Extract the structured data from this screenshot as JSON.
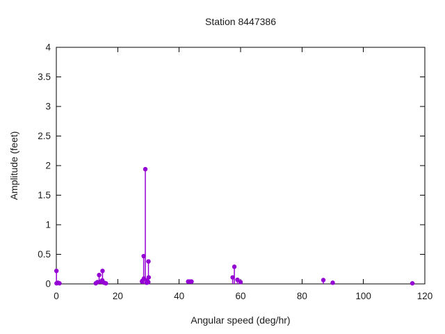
{
  "chart_data": {
    "type": "stem",
    "title": "Station 8447386",
    "xlabel": "Angular speed (deg/hr)",
    "ylabel": "Amplitude (feet)",
    "xlim": [
      0,
      120
    ],
    "ylim": [
      0,
      4
    ],
    "xticks": [
      0,
      20,
      40,
      60,
      80,
      100,
      120
    ],
    "yticks": [
      0,
      0.5,
      1,
      1.5,
      2,
      2.5,
      3,
      3.5,
      4
    ],
    "grid": false,
    "legend": "none",
    "marker_color": "#9400d3",
    "axis_color": "#000000",
    "text_color": "#1a1a1a",
    "points": [
      {
        "x": 0.04,
        "y": 0.22
      },
      {
        "x": 0.08,
        "y": 0.01
      },
      {
        "x": 0.54,
        "y": 0.02
      },
      {
        "x": 1.02,
        "y": 0.01
      },
      {
        "x": 12.85,
        "y": 0.01
      },
      {
        "x": 13.4,
        "y": 0.03
      },
      {
        "x": 13.94,
        "y": 0.15
      },
      {
        "x": 14.5,
        "y": 0.04
      },
      {
        "x": 14.96,
        "y": 0.06
      },
      {
        "x": 15.04,
        "y": 0.22
      },
      {
        "x": 15.59,
        "y": 0.02
      },
      {
        "x": 16.14,
        "y": 0.01
      },
      {
        "x": 27.9,
        "y": 0.04
      },
      {
        "x": 27.97,
        "y": 0.05
      },
      {
        "x": 28.44,
        "y": 0.47
      },
      {
        "x": 28.51,
        "y": 0.09
      },
      {
        "x": 28.98,
        "y": 1.94
      },
      {
        "x": 29.46,
        "y": 0.02
      },
      {
        "x": 29.53,
        "y": 0.06
      },
      {
        "x": 29.96,
        "y": 0.03
      },
      {
        "x": 30.0,
        "y": 0.38
      },
      {
        "x": 30.08,
        "y": 0.11
      },
      {
        "x": 42.93,
        "y": 0.04
      },
      {
        "x": 43.48,
        "y": 0.04
      },
      {
        "x": 44.03,
        "y": 0.04
      },
      {
        "x": 57.42,
        "y": 0.11
      },
      {
        "x": 57.97,
        "y": 0.29
      },
      {
        "x": 58.98,
        "y": 0.07
      },
      {
        "x": 60.0,
        "y": 0.03
      },
      {
        "x": 86.95,
        "y": 0.065
      },
      {
        "x": 90.0,
        "y": 0.02
      },
      {
        "x": 115.94,
        "y": 0.01
      }
    ]
  }
}
